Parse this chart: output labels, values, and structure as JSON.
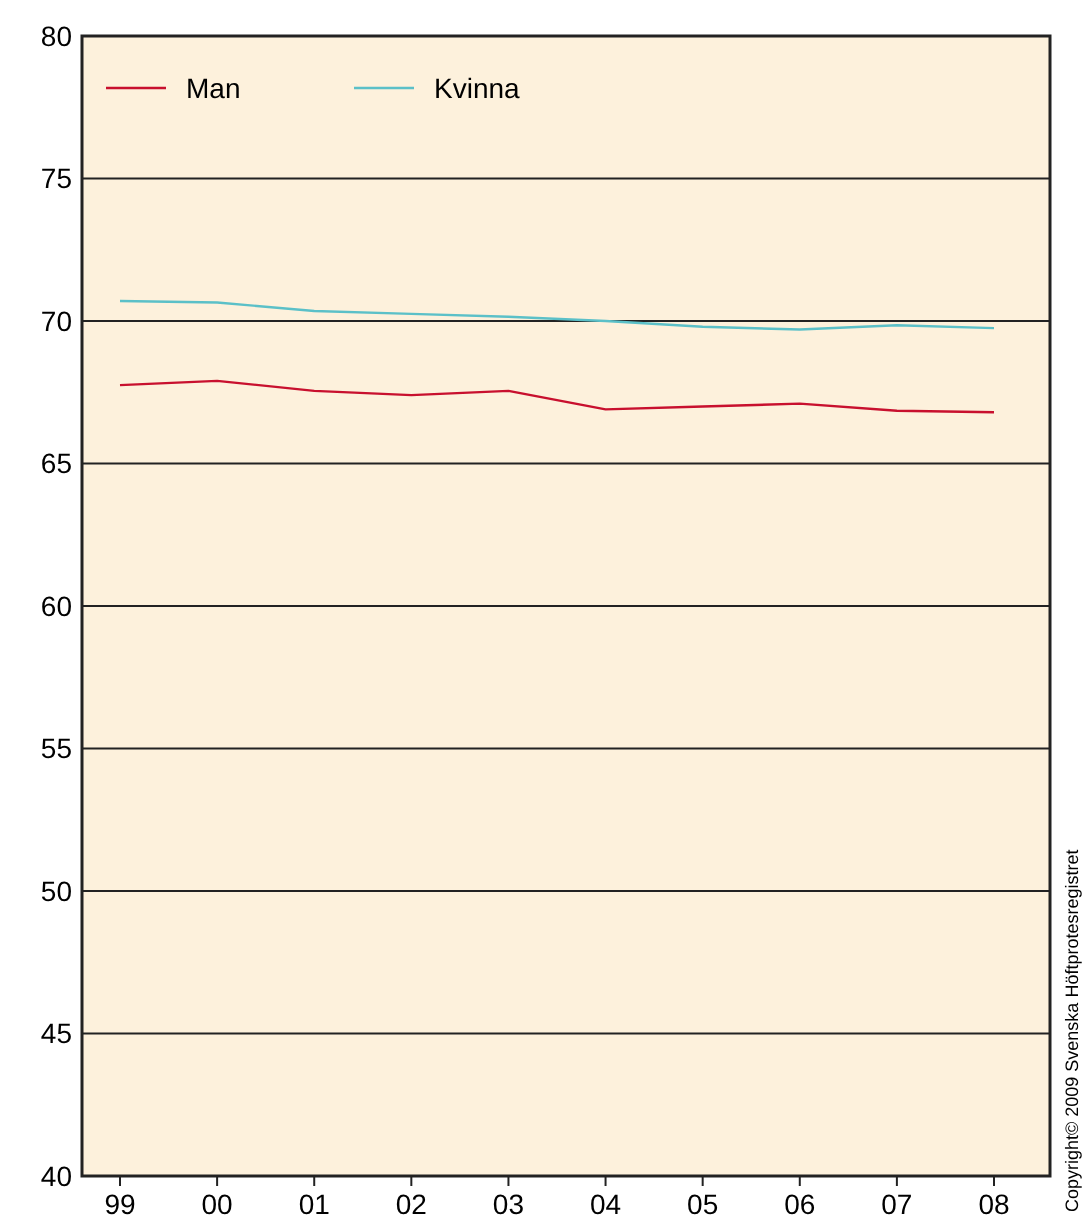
{
  "chart_data": {
    "type": "line",
    "categories": [
      "99",
      "00",
      "01",
      "02",
      "03",
      "04",
      "05",
      "06",
      "07",
      "08"
    ],
    "series": [
      {
        "name": "Man",
        "color": "#c8102e",
        "values": [
          67.75,
          67.9,
          67.55,
          67.4,
          67.55,
          66.9,
          67.0,
          67.1,
          66.85,
          66.8
        ]
      },
      {
        "name": "Kvinna",
        "color": "#5bc0c8",
        "values": [
          70.7,
          70.65,
          70.35,
          70.25,
          70.15,
          70.0,
          69.8,
          69.7,
          69.85,
          69.75
        ]
      }
    ],
    "ylim": [
      40,
      80
    ],
    "yticks": [
      40,
      45,
      50,
      55,
      60,
      65,
      70,
      75,
      80
    ],
    "grid": "y",
    "legend": "top left",
    "marker": "none",
    "line_style": "solid",
    "annotations": [
      "Copyright© 2009 Svenska Höftprotesregistret"
    ]
  }
}
